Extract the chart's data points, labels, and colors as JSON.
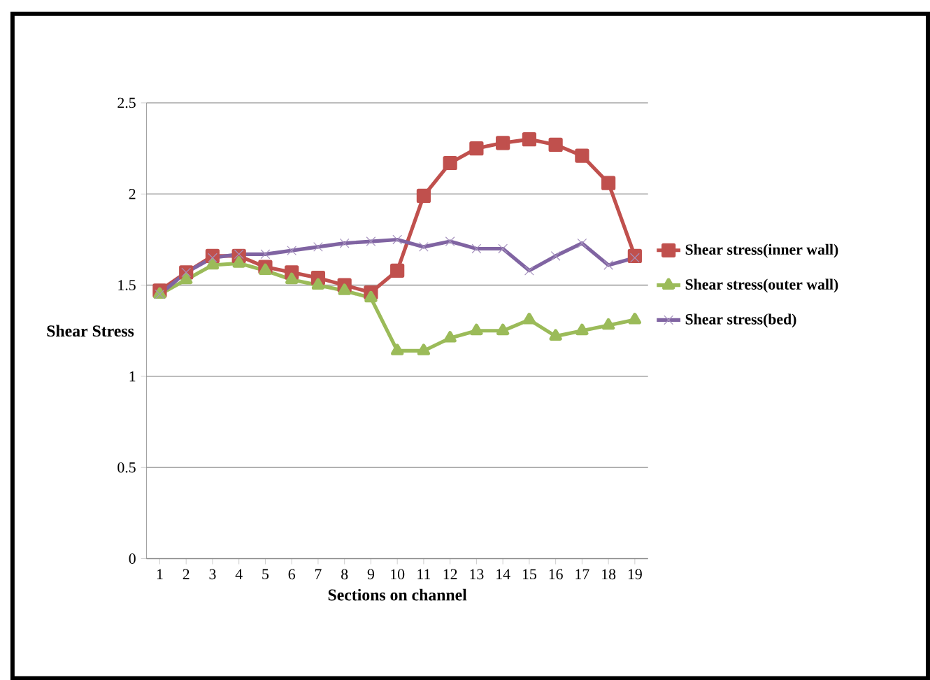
{
  "chart_data": {
    "type": "line",
    "xlabel": "Sections on channel",
    "ylabel": "Shear Stress",
    "categories": [
      "1",
      "2",
      "3",
      "4",
      "5",
      "6",
      "7",
      "8",
      "9",
      "10",
      "11",
      "12",
      "13",
      "14",
      "15",
      "16",
      "17",
      "18",
      "19"
    ],
    "series": [
      {
        "name": "Shear stress(inner wall)",
        "color": "#c0504d",
        "marker": "square",
        "values": [
          1.47,
          1.57,
          1.66,
          1.66,
          1.6,
          1.57,
          1.54,
          1.5,
          1.46,
          1.58,
          1.99,
          2.17,
          2.25,
          2.28,
          2.3,
          2.27,
          2.21,
          2.06,
          1.66
        ]
      },
      {
        "name": "Shear stress(outer  wall)",
        "color": "#9bbb59",
        "marker": "triangle",
        "values": [
          1.45,
          1.53,
          1.61,
          1.62,
          1.58,
          1.53,
          1.5,
          1.47,
          1.43,
          1.14,
          1.14,
          1.21,
          1.25,
          1.25,
          1.31,
          1.22,
          1.25,
          1.28,
          1.31
        ]
      },
      {
        "name": "Shear stress(bed)",
        "color": "#8064a2",
        "marker": "cross",
        "values": [
          1.45,
          1.57,
          1.65,
          1.67,
          1.67,
          1.69,
          1.71,
          1.73,
          1.74,
          1.75,
          1.71,
          1.74,
          1.7,
          1.7,
          1.58,
          1.66,
          1.73,
          1.61,
          1.65
        ]
      }
    ],
    "ylim": [
      0,
      2.5
    ],
    "yticks": [
      0,
      0.5,
      1,
      1.5,
      2,
      2.5
    ],
    "grid": "y",
    "legend": "right",
    "line_style": "solid"
  }
}
